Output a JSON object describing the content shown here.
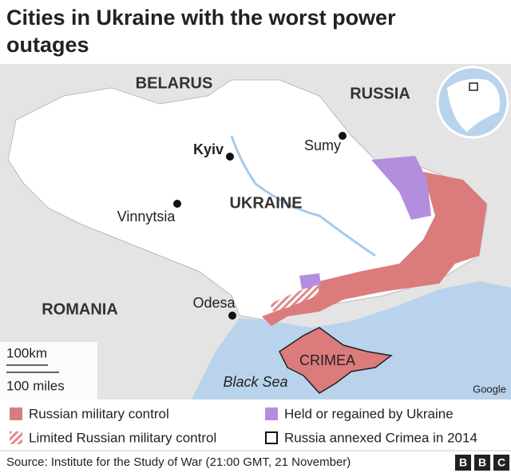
{
  "title": [
    "Cities in Ukraine with the worst power",
    "outages"
  ],
  "map": {
    "countries": [
      "BELARUS",
      "RUSSIA",
      "UKRAINE",
      "ROMANIA"
    ],
    "cities": [
      "Kyiv",
      "Sumy",
      "Vinnytsia",
      "Odesa"
    ],
    "region": "CRIMEA",
    "sea": "Black Sea",
    "scale": [
      "100km",
      "100 miles"
    ],
    "attribution": "Google"
  },
  "legend": [
    "Russian military control",
    "Limited Russian military control",
    "Held or regained by Ukraine",
    "Russia annexed Crimea in 2014"
  ],
  "footer": {
    "source": "Source: Institute for the Study of War (21:00 GMT, 21 November)",
    "logo": [
      "B",
      "B",
      "C"
    ]
  }
}
